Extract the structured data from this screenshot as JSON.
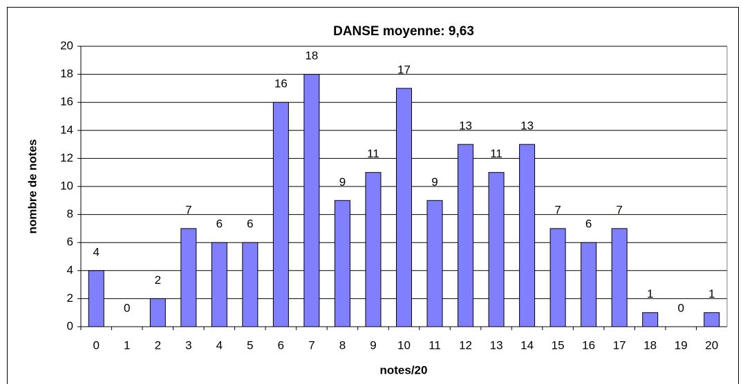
{
  "chart_data": {
    "type": "bar",
    "title": "DANSE moyenne: 9,63",
    "x_label": "notes/20",
    "y_label": "nombre de notes",
    "categories": [
      0,
      1,
      2,
      3,
      4,
      5,
      6,
      7,
      8,
      9,
      10,
      11,
      12,
      13,
      14,
      15,
      16,
      17,
      18,
      19,
      20
    ],
    "values": [
      4,
      0,
      2,
      7,
      6,
      6,
      16,
      18,
      9,
      11,
      17,
      9,
      13,
      11,
      13,
      7,
      6,
      7,
      1,
      0,
      1
    ],
    "color": "#8080ff",
    "ylim": [
      0,
      20
    ],
    "yticks": [
      0,
      2,
      4,
      6,
      8,
      10,
      12,
      14,
      16,
      18,
      20
    ],
    "grid": true
  }
}
